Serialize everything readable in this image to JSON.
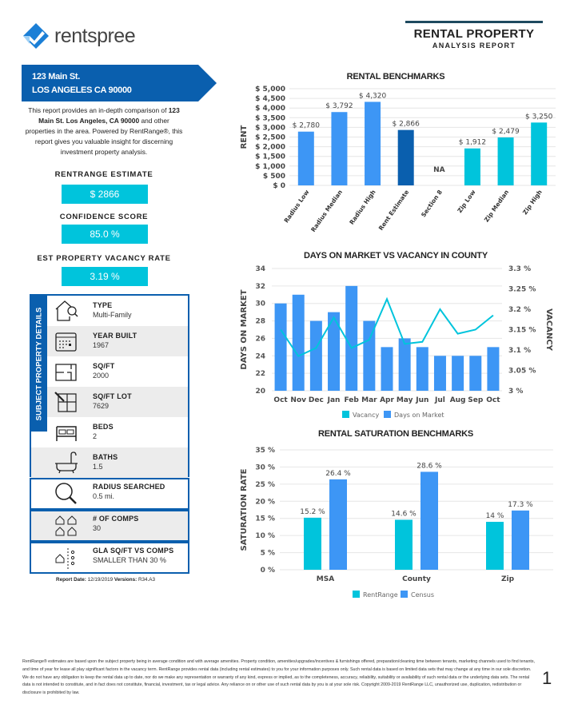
{
  "brand": {
    "logo_text": "rentspree"
  },
  "report_title": {
    "main": "RENTAL PROPERTY",
    "sub": "ANALYSIS REPORT"
  },
  "address": {
    "line1": "123 Main St.",
    "line2": "LOS ANGELES CA 90000"
  },
  "description": {
    "pre": "This report provides an in-depth comparison of ",
    "bold": "123 Main St. Los Angeles, CA 90000",
    "post": " and other properties in the area. Powered by RentRange®, this report gives you valuable insight for discerning investment property analysis."
  },
  "metrics": {
    "estimate_label": "RENTRANGE ESTIMATE",
    "estimate_value": "$ 2866",
    "confidence_label": "CONFIDENCE SCORE",
    "confidence_value": "85.0 %",
    "vacancy_label": "EST PROPERTY VACANCY RATE",
    "vacancy_value": "3.19 %"
  },
  "details": {
    "section_title": "SUBJECT PROPERTY DETAILS",
    "items": [
      {
        "label": "TYPE",
        "value": "Multi-Family",
        "icon": "house-search-icon"
      },
      {
        "label": "YEAR BUILT",
        "value": "1967",
        "icon": "calendar-icon"
      },
      {
        "label": "SQ/FT",
        "value": "2000",
        "icon": "floorplan-icon"
      },
      {
        "label": "SQ/FT LOT",
        "value": "7629",
        "icon": "lot-plan-icon"
      },
      {
        "label": "BEDS",
        "value": "2",
        "icon": "bed-icon"
      },
      {
        "label": "BATHS",
        "value": "1.5",
        "icon": "bathtub-icon"
      }
    ],
    "radius": {
      "label": "RADIUS SEARCHED",
      "value": "0.5 mi.",
      "icon": "magnifier-icon"
    },
    "comps": {
      "label": "# OF COMPS",
      "value": "30",
      "icon": "houses-icon"
    },
    "gla": {
      "label": "GLA SQ/FT VS COMPS",
      "value": "SMALLER THAN 30 %",
      "icon": "house-compare-icon"
    }
  },
  "report_meta": {
    "date_label": "Report Date:",
    "date": "12/19/2019",
    "version_label": "Versions:",
    "version": "R34.A3"
  },
  "colors": {
    "brand_blue": "#0a5fae",
    "cyan": "#00c4dc",
    "bar_blue": "#3d96f5"
  },
  "chart_data": [
    {
      "type": "bar",
      "title": "RENTAL BENCHMARKS",
      "ylabel": "RENT",
      "ylim": [
        0,
        5000
      ],
      "yticks": [
        "$ 0",
        "$ 500",
        "$ 1,000",
        "$ 1,500",
        "$ 2,000",
        "$ 2,500",
        "$ 3,000",
        "$ 3,500",
        "$ 4,000",
        "$ 4,500",
        "$ 5,000"
      ],
      "categories": [
        "Radius Low",
        "Radius Median",
        "Radius High",
        "Rent Estimate",
        "Section 8",
        "Zip Low",
        "Zip Median",
        "Zip High"
      ],
      "values": [
        2780,
        3792,
        4320,
        2866,
        null,
        1912,
        2479,
        3250
      ],
      "labels": [
        "$ 2,780",
        "$ 3,792",
        "$ 4,320",
        "$ 2,866",
        "NA",
        "$ 1,912",
        "$ 2,479",
        "$ 3,250"
      ],
      "bar_colors": [
        "#3d96f5",
        "#3d96f5",
        "#3d96f5",
        "#0a5fae",
        "#3d96f5",
        "#00c4dc",
        "#00c4dc",
        "#00c4dc"
      ],
      "grid": true
    },
    {
      "type": "bar+line",
      "title": "DAYS ON MARKET VS VACANCY IN COUNTY",
      "ylabel": "DAYS ON MARKET",
      "y2label": "VACANCY",
      "ylim": [
        20,
        34
      ],
      "y2lim": [
        3.0,
        3.3
      ],
      "yticks": [
        "20",
        "22",
        "24",
        "26",
        "28",
        "30",
        "32",
        "34"
      ],
      "y2ticks": [
        "3 %",
        "3.05 %",
        "3.1 %",
        "3.15 %",
        "3.2 %",
        "3.25 %",
        "3.3 %"
      ],
      "categories": [
        "Oct",
        "Nov",
        "Dec",
        "Jan",
        "Feb",
        "Mar",
        "Apr",
        "May",
        "Jun",
        "Jul",
        "Aug",
        "Sep",
        "Oct"
      ],
      "series": [
        {
          "name": "Days on Market",
          "type": "bar",
          "color": "#3d96f5",
          "values": [
            30,
            31,
            28,
            29,
            32,
            28,
            25,
            26,
            25,
            24,
            24,
            24,
            25
          ]
        },
        {
          "name": "Vacancy",
          "type": "line",
          "color": "#00c4dc",
          "values": [
            3.15,
            3.085,
            3.105,
            3.18,
            3.105,
            3.125,
            3.225,
            3.115,
            3.12,
            3.2,
            3.14,
            3.15,
            3.185
          ]
        }
      ],
      "legend": "bottom",
      "grid": true
    },
    {
      "type": "bar",
      "title": "RENTAL SATURATION BENCHMARKS",
      "ylabel": "SATURATION RATE",
      "ylim": [
        0,
        35
      ],
      "yticks": [
        "0 %",
        "5 %",
        "10 %",
        "15 %",
        "20 %",
        "25 %",
        "30 %",
        "35 %"
      ],
      "categories": [
        "MSA",
        "County",
        "Zip"
      ],
      "series": [
        {
          "name": "RentRange",
          "color": "#00c4dc",
          "values": [
            15.2,
            14.6,
            14
          ],
          "labels": [
            "15.2 %",
            "14.6 %",
            "14 %"
          ]
        },
        {
          "name": "Census",
          "color": "#3d96f5",
          "values": [
            26.4,
            28.6,
            17.3
          ],
          "labels": [
            "26.4 %",
            "28.6 %",
            "17.3 %"
          ]
        }
      ],
      "legend": "bottom",
      "grid": true
    }
  ],
  "footer": {
    "disclaimer": "RentRange® estimates are based upon the subject property being in average condition and with average amenities. Property condition, amenities/upgrades/incentives & furnishings offered, preparation/cleaning time between tenants, marketing channels used to find tenants, and time of year for lease all play significant factors in the vacancy term. RentRange provides rental data (including rental estimates) to you for your information purposes only. Such rental data is based on limited data sets that may change at any time in our sole discretion. We do not have any obligation to keep the rental data up to date, nor do we make any representation or warranty of any kind, express or implied, as to the completeness, accuracy, reliability, suitability or availability of such rental data or the underlying data sets. The rental data is not intended to constitute, and in fact does not constitute, financial, investment, tax or legal advice. Any reliance on or other use of such rental data by you is at your sole risk. Copyright 2009-2019 RentRange LLC, unauthorized use, duplication, redistribution or disclosure is prohibited by law.",
    "page_number": "1"
  }
}
